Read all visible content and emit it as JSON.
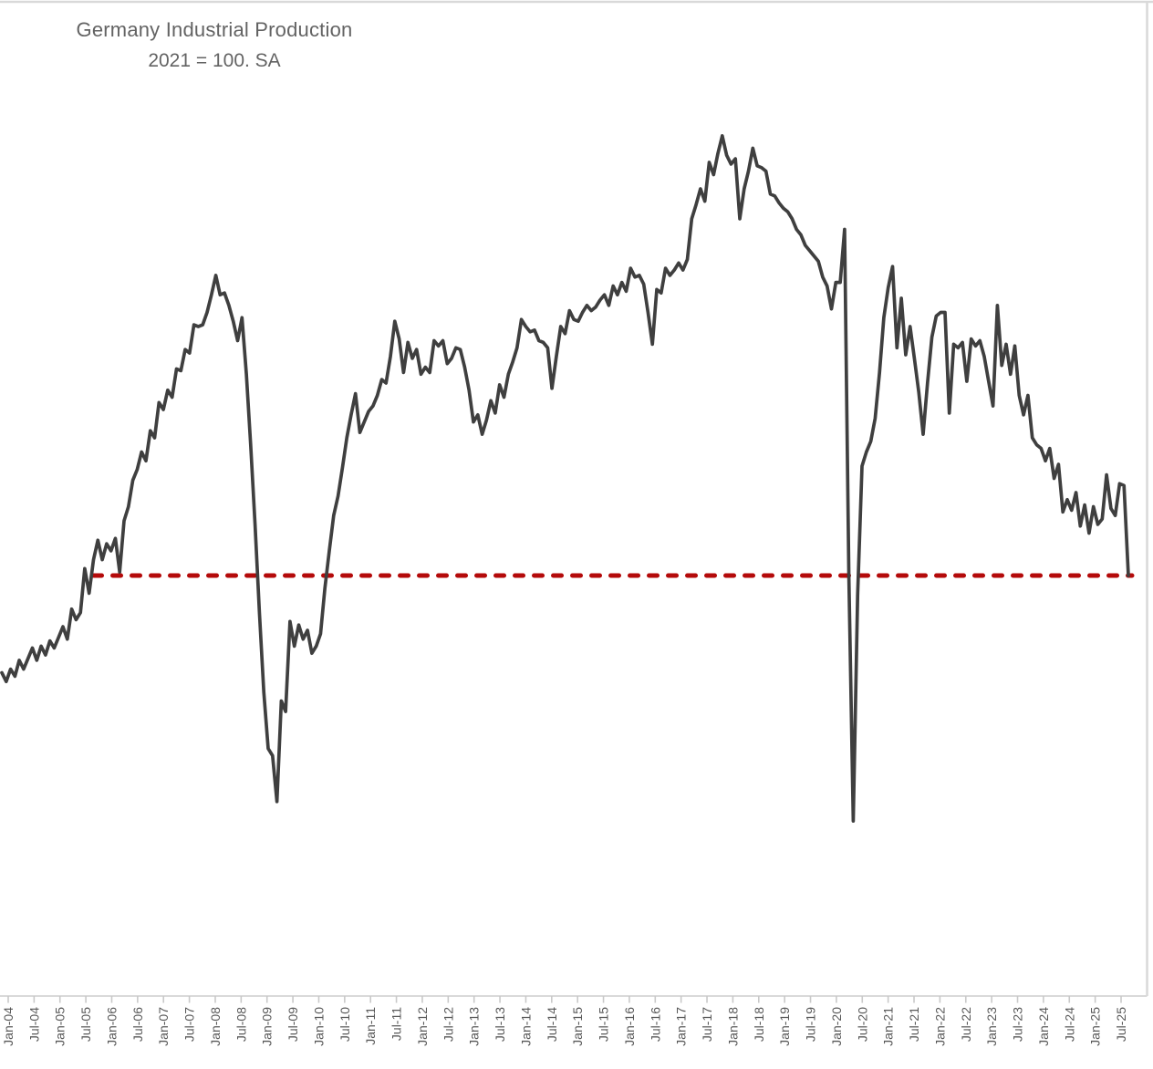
{
  "title": "Germany Industrial Production",
  "subtitle": "2021 = 100. SA",
  "colors": {
    "series_line": "#3F3F3F",
    "reference_line": "#B40A0A",
    "axis_line": "#D9D9D9",
    "tick_mark": "#C9C9C9",
    "axis_label_text": "#595959",
    "title_text": "#636363",
    "background": "#FFFFFF"
  },
  "chart_data": {
    "type": "line",
    "title": "Germany Industrial Production",
    "subtitle": "2021 = 100. SA",
    "x_unit": "month",
    "x_start": "Jan-04",
    "x_end": "Jul-25",
    "frequency": "monthly",
    "grid": false,
    "legend": false,
    "y_axis_visible": false,
    "ylim": [
      79,
      122
    ],
    "x_tick_labels": [
      "Jan-04",
      "Jul-04",
      "Jan-05",
      "Jul-05",
      "Jan-06",
      "Jul-06",
      "Jan-07",
      "Jul-07",
      "Jan-08",
      "Jul-08",
      "Jan-09",
      "Jul-09",
      "Jan-10",
      "Jul-10",
      "Jan-11",
      "Jul-11",
      "Jan-12",
      "Jul-12",
      "Jan-13",
      "Jul-13",
      "Jan-14",
      "Jul-14",
      "Jan-15",
      "Jul-15",
      "Jan-16",
      "Jul-16",
      "Jan-17",
      "Jul-17",
      "Jan-18",
      "Jul-18",
      "Jan-19",
      "Jul-19",
      "Jan-20",
      "Jul-20",
      "Jan-21",
      "Jul-21",
      "Jan-22",
      "Jul-22",
      "Jan-23",
      "Jul-23",
      "Jan-24",
      "Jul-24",
      "Jan-25",
      "Jul-25"
    ],
    "series": [
      {
        "name": "Germany Industrial Production (index, 2021 = 100, SA)",
        "color": "#3F3F3F",
        "values_estimated": true,
        "values": [
          89.6,
          89.1,
          89.8,
          89.4,
          90.3,
          89.8,
          90.4,
          91.0,
          90.3,
          91.1,
          90.6,
          91.4,
          91.0,
          91.6,
          92.2,
          91.5,
          93.2,
          92.6,
          93.0,
          95.5,
          94.1,
          96.0,
          97.1,
          96.0,
          96.9,
          96.5,
          97.2,
          95.3,
          98.2,
          99.0,
          100.5,
          101.1,
          102.1,
          101.6,
          103.3,
          102.9,
          104.9,
          104.5,
          105.6,
          105.2,
          106.8,
          106.7,
          107.9,
          107.7,
          109.3,
          109.2,
          109.3,
          110.0,
          111.0,
          112.1,
          111.0,
          111.1,
          110.4,
          109.5,
          108.4,
          109.7,
          106.5,
          102.5,
          98.0,
          93.0,
          88.5,
          85.3,
          84.9,
          82.3,
          88.0,
          87.4,
          92.5,
          91.1,
          92.3,
          91.5,
          92.0,
          90.7,
          91.1,
          91.8,
          94.4,
          96.5,
          98.5,
          99.6,
          101.2,
          102.9,
          104.2,
          105.4,
          103.2,
          103.8,
          104.4,
          104.7,
          105.3,
          106.2,
          106.0,
          107.5,
          109.5,
          108.5,
          106.6,
          108.3,
          107.4,
          107.9,
          106.5,
          106.9,
          106.6,
          108.4,
          108.1,
          108.4,
          107.1,
          107.4,
          108.0,
          107.9,
          106.9,
          105.6,
          103.8,
          104.2,
          103.1,
          103.9,
          105.0,
          104.3,
          105.9,
          105.2,
          106.5,
          107.2,
          108.0,
          109.6,
          109.2,
          108.9,
          109.0,
          108.4,
          108.3,
          108.0,
          105.7,
          107.5,
          109.2,
          108.8,
          110.1,
          109.6,
          109.5,
          110.0,
          110.4,
          110.1,
          110.3,
          110.7,
          111.0,
          110.4,
          111.5,
          111.0,
          111.7,
          111.2,
          112.5,
          112.0,
          112.1,
          111.6,
          110.0,
          108.2,
          111.3,
          111.1,
          112.5,
          112.1,
          112.4,
          112.8,
          112.4,
          113.0,
          115.3,
          116.1,
          117.0,
          116.3,
          118.5,
          117.8,
          119.0,
          120.0,
          118.9,
          118.4,
          118.7,
          115.3,
          117.0,
          118.0,
          119.3,
          118.3,
          118.2,
          118.0,
          116.7,
          116.6,
          116.2,
          115.9,
          115.7,
          115.3,
          114.7,
          114.4,
          113.8,
          113.5,
          113.2,
          112.9,
          112.0,
          111.5,
          110.2,
          111.7,
          111.7,
          114.7,
          95.0,
          81.2,
          94.0,
          101.3,
          102.1,
          102.7,
          104.0,
          106.6,
          109.7,
          111.4,
          112.6,
          108.0,
          110.8,
          107.6,
          109.2,
          107.4,
          105.5,
          103.1,
          106.0,
          108.6,
          109.8,
          110.0,
          110.0,
          104.3,
          108.2,
          108.0,
          108.3,
          106.1,
          108.5,
          108.1,
          108.4,
          107.5,
          106.1,
          104.7,
          110.4,
          107.0,
          108.2,
          106.5,
          108.1,
          105.3,
          104.2,
          105.3,
          102.9,
          102.5,
          102.3,
          101.6,
          102.3,
          100.6,
          101.4,
          98.7,
          99.4,
          98.8,
          99.8,
          97.9,
          99.1,
          97.5,
          99.0,
          98.0,
          98.3,
          100.8,
          98.9,
          98.5,
          100.3,
          100.2,
          95.1
        ]
      }
    ],
    "reference_line": {
      "type": "horizontal-dashed",
      "value": 95.1,
      "color": "#B40A0A",
      "start_month_index": 21,
      "description": "Dashed line at the latest (Jul-25) level of the index"
    }
  }
}
